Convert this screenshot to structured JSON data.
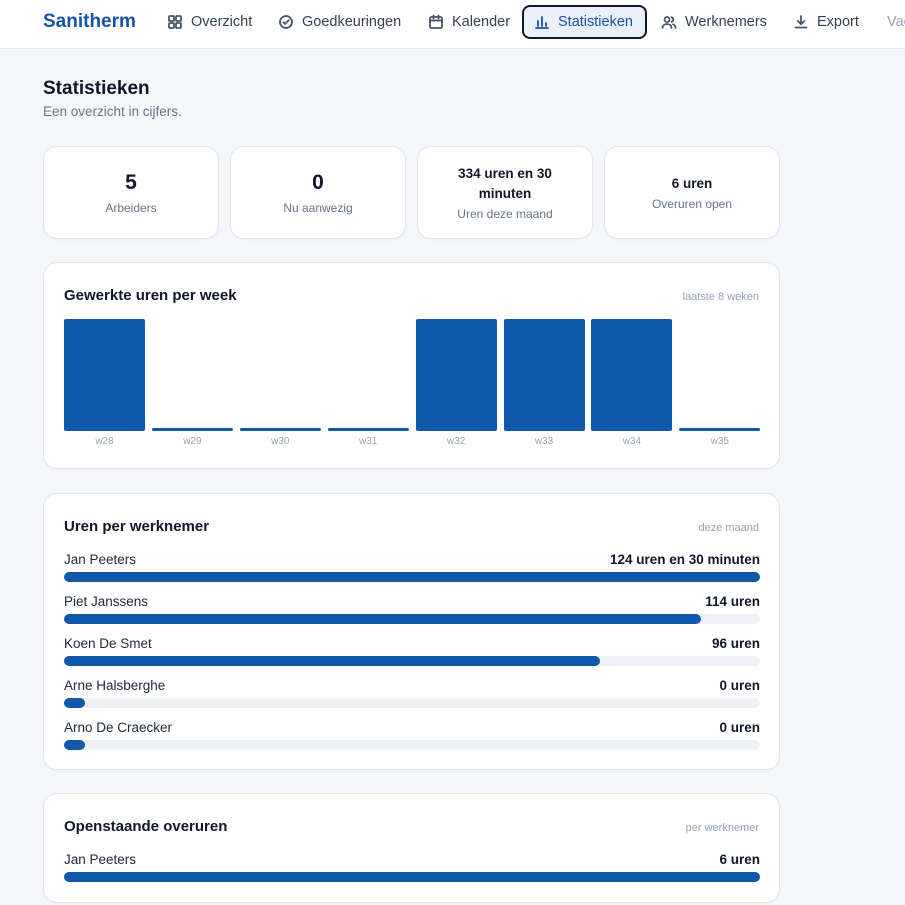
{
  "app": {
    "brand": "Sanitherm"
  },
  "nav": {
    "items": [
      {
        "label": "Overzicht",
        "icon": "grid-icon"
      },
      {
        "label": "Goedkeuringen",
        "icon": "check-circle-icon"
      },
      {
        "label": "Kalender",
        "icon": "calendar-icon"
      },
      {
        "label": "Statistieken",
        "icon": "bar-chart-icon",
        "active": true
      },
      {
        "label": "Werknemers",
        "icon": "users-icon"
      },
      {
        "label": "Export",
        "icon": "download-icon"
      },
      {
        "label": "Vac",
        "icon": ""
      }
    ]
  },
  "page": {
    "title": "Statistieken",
    "subtitle": "Een overzicht in cijfers."
  },
  "stats": [
    {
      "value": "5",
      "label": "Arbeiders"
    },
    {
      "value": "0",
      "label": "Nu aanwezig"
    },
    {
      "value": "334 uren en 30 minuten",
      "label": "Uren deze maand"
    },
    {
      "value": "6 uren",
      "label": "Overuren open"
    }
  ],
  "weekly": {
    "title": "Gewerkte uren per week",
    "hint": "laatste 8 weken"
  },
  "chart_data": {
    "type": "bar",
    "categories": [
      "w28",
      "w29",
      "w30",
      "w31",
      "w32",
      "w33",
      "w34",
      "w35"
    ],
    "values": [
      1,
      0.03,
      0.03,
      0.03,
      1,
      1,
      1,
      0.03
    ]
  },
  "per_employee": {
    "title": "Uren per werknemer",
    "hint": "deze maand",
    "rows": [
      {
        "name": "Jan Peeters",
        "value": "124 uren en 30 minuten",
        "fraction": 1.0
      },
      {
        "name": "Piet Janssens",
        "value": "114 uren",
        "fraction": 0.915
      },
      {
        "name": "Koen De Smet",
        "value": "96 uren",
        "fraction": 0.77
      },
      {
        "name": "Arne Halsberghe",
        "value": "0 uren",
        "fraction": 0.03
      },
      {
        "name": "Arno De Craecker",
        "value": "0 uren",
        "fraction": 0.03
      }
    ]
  },
  "overtime": {
    "title": "Openstaande overuren",
    "hint": "per werknemer",
    "rows": [
      {
        "name": "Jan Peeters",
        "value": "6 uren",
        "fraction": 1.0
      }
    ]
  },
  "colors": {
    "accent": "#1554a4",
    "bar": "#1058a8",
    "track": "#eef2f7"
  }
}
